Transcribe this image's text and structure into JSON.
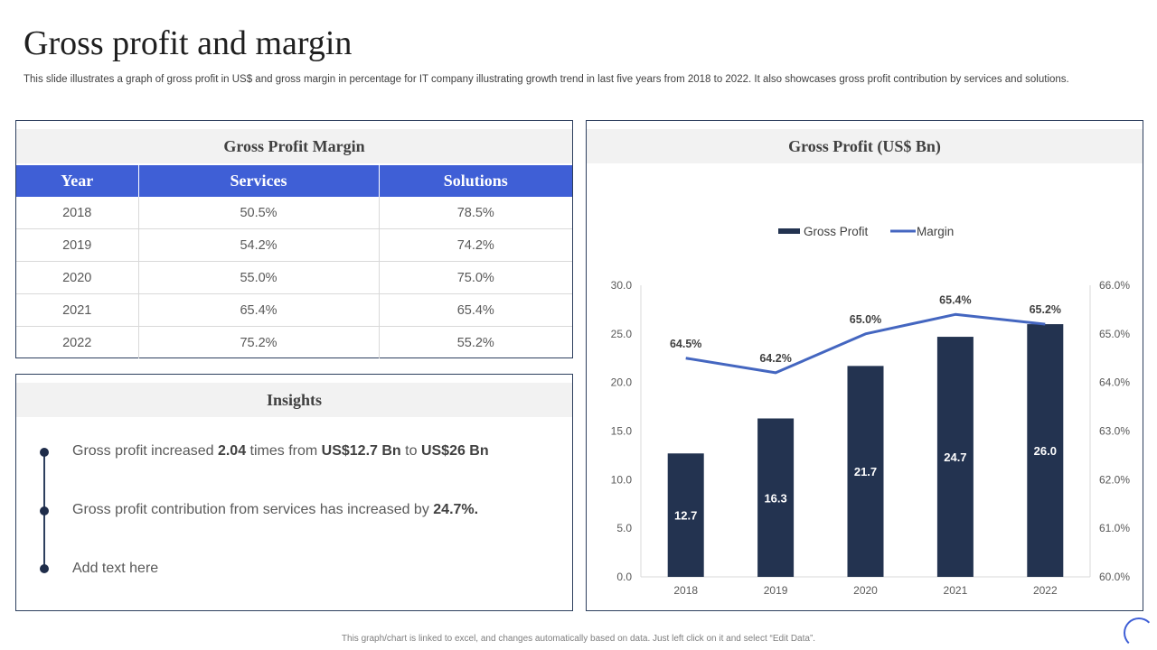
{
  "slide": {
    "title": "Gross profit and margin",
    "subtitle": "This slide illustrates a graph of gross profit in US$ and gross margin in percentage for IT  company illustrating growth trend in last five  years from 2018 to 2022. It also showcases gross profit contribution by services and solutions.",
    "footer": "This graph/chart is linked to excel, and changes automatically based on data. Just left click on it and select “Edit Data”."
  },
  "margin_table": {
    "title": "Gross Profit Margin",
    "headers": [
      "Year",
      "Services",
      "Solutions"
    ],
    "rows": [
      [
        "2018",
        "50.5%",
        "78.5%"
      ],
      [
        "2019",
        "54.2%",
        "74.2%"
      ],
      [
        "2020",
        "55.0%",
        "75.0%"
      ],
      [
        "2021",
        "65.4%",
        "65.4%"
      ],
      [
        "2022",
        "75.2%",
        "55.2%"
      ]
    ],
    "header_color": "#3f5fd6"
  },
  "insights": {
    "title": "Insights",
    "items": [
      {
        "p1": "Gross profit increased ",
        "b1": "2.04",
        "p2": " times from ",
        "b2": "US$12.7 Bn",
        "p3": " to ",
        "b3": "US$26 Bn"
      },
      {
        "p1": "Gross profit contribution  from services has increased by ",
        "b1": "24.7%."
      },
      {
        "p1": "Add text here"
      }
    ]
  },
  "chart_data": {
    "type": "bar",
    "title": "Gross Profit (US$ Bn)",
    "categories": [
      "2018",
      "2019",
      "2020",
      "2021",
      "2022"
    ],
    "series": [
      {
        "name": "Gross Profit",
        "type": "bar",
        "axis": "left",
        "color": "#233350",
        "values": [
          12.7,
          16.3,
          21.7,
          24.7,
          26.0
        ],
        "labels": [
          "12.7",
          "16.3",
          "21.7",
          "24.7",
          "26.0"
        ]
      },
      {
        "name": "Margin",
        "type": "line",
        "axis": "right",
        "color": "#4466c0",
        "values": [
          64.5,
          64.2,
          65.0,
          65.4,
          65.2
        ],
        "labels": [
          "64.5%",
          "64.2%",
          "65.0%",
          "65.4%",
          "65.2%"
        ]
      }
    ],
    "y_left": {
      "min": 0,
      "max": 30,
      "ticks": [
        "0.0",
        "5.0",
        "10.0",
        "15.0",
        "20.0",
        "25.0",
        "30.0"
      ]
    },
    "y_right": {
      "min": 60,
      "max": 66,
      "ticks": [
        "60.0%",
        "61.0%",
        "62.0%",
        "63.0%",
        "64.0%",
        "65.0%",
        "66.0%"
      ]
    },
    "legend_position": "top-center",
    "grid": false
  }
}
